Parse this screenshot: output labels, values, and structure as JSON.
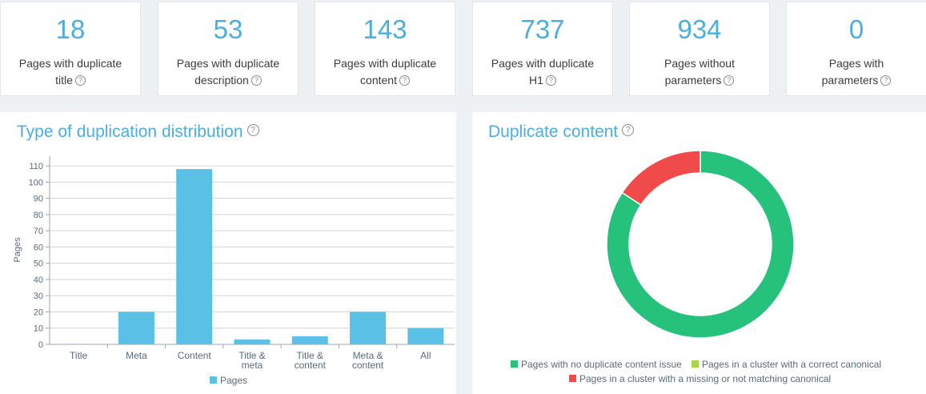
{
  "stats": [
    {
      "value": "18",
      "line1": "Pages with duplicate",
      "line2": "title"
    },
    {
      "value": "53",
      "line1": "Pages with duplicate",
      "line2": "description"
    },
    {
      "value": "143",
      "line1": "Pages with duplicate",
      "line2": "content"
    },
    {
      "value": "737",
      "line1": "Pages with duplicate",
      "line2": "H1"
    },
    {
      "value": "934",
      "line1": "Pages without",
      "line2": "parameters"
    },
    {
      "value": "0",
      "line1": "Pages with",
      "line2": "parameters"
    }
  ],
  "help_glyph": "?",
  "colors": {
    "accent": "#4aafdf",
    "bar": "#5bc0e6",
    "green": "#26c27b",
    "lime": "#a5d64c",
    "red": "#f04a4a"
  },
  "bar_panel": {
    "title": "Type of duplication distribution"
  },
  "donut_panel": {
    "title": "Duplicate content"
  },
  "chart_data": [
    {
      "type": "bar",
      "title": "Type of duplication distribution",
      "ylabel": "Pages",
      "xlabel": "",
      "ylim": [
        0,
        115
      ],
      "yticks": [
        0,
        10,
        20,
        30,
        40,
        50,
        60,
        70,
        80,
        90,
        100,
        110
      ],
      "categories": [
        [
          "Title"
        ],
        [
          "Meta"
        ],
        [
          "Content"
        ],
        [
          "Title &",
          "meta"
        ],
        [
          "Title &",
          "content"
        ],
        [
          "Meta &",
          "content"
        ],
        [
          "All"
        ]
      ],
      "series": [
        {
          "name": "Pages",
          "values": [
            0,
            20,
            108,
            3,
            5,
            20,
            10
          ]
        }
      ],
      "grid": true,
      "legend": "bottom"
    },
    {
      "type": "pie",
      "title": "Duplicate content",
      "donut": true,
      "slices": [
        {
          "label": "Pages with no duplicate content issue",
          "value": 84.3,
          "color": "#26c27b"
        },
        {
          "label": "Pages in a cluster with a correct canonical",
          "value": 0,
          "color": "#a5d64c"
        },
        {
          "label": "Pages in a cluster with a missing or not matching canonical",
          "value": 15.7,
          "color": "#f04a4a"
        }
      ],
      "legend": "bottom"
    }
  ]
}
